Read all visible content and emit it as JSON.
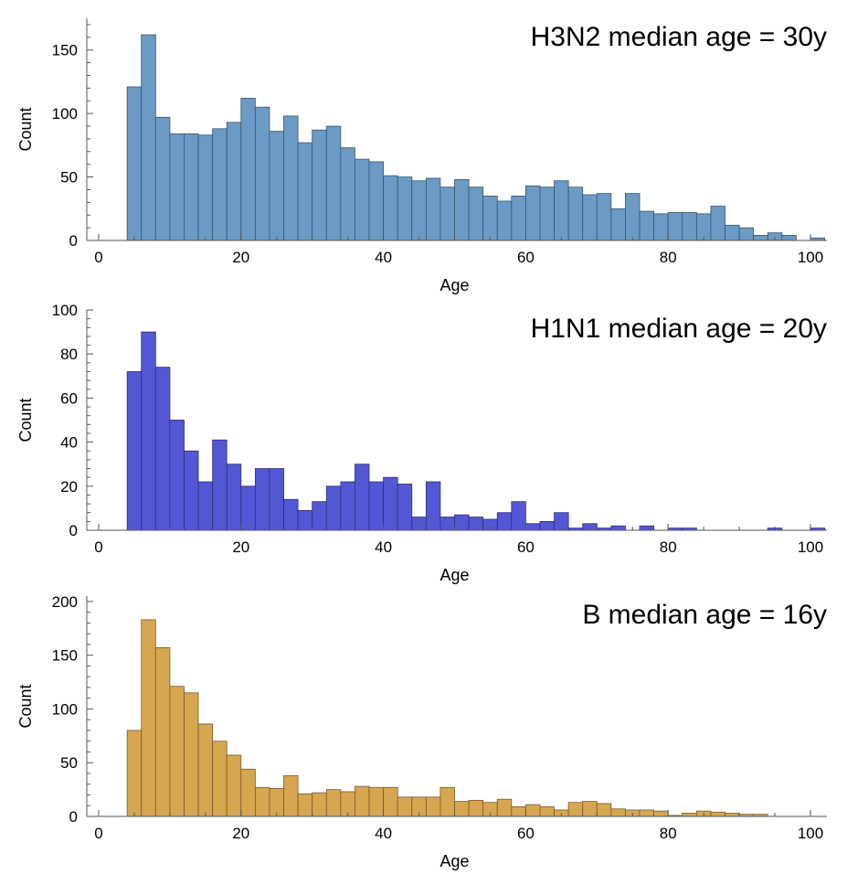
{
  "chart_data": [
    {
      "type": "bar",
      "annotation": "H3N2 median age = 30y",
      "xlabel": "Age",
      "ylabel": "Count",
      "xlim": [
        -2,
        102
      ],
      "ylim": [
        0,
        175
      ],
      "xticks": [
        0,
        20,
        40,
        60,
        80,
        100
      ],
      "yticks": [
        0,
        50,
        100,
        150
      ],
      "bin_width": 2,
      "bin_start": 4,
      "color": "#6b9ac4",
      "values": [
        121,
        162,
        97,
        84,
        84,
        83,
        88,
        93,
        112,
        105,
        86,
        98,
        77,
        87,
        90,
        73,
        64,
        62,
        51,
        50,
        47,
        49,
        42,
        48,
        42,
        35,
        31,
        35,
        43,
        42,
        47,
        42,
        36,
        37,
        25,
        37,
        23,
        21,
        22,
        22,
        21,
        27,
        12,
        10,
        4,
        6,
        4,
        0,
        2
      ]
    },
    {
      "type": "bar",
      "annotation": "H1N1 median age = 20y",
      "xlabel": "Age",
      "ylabel": "Count",
      "xlim": [
        -2,
        102
      ],
      "ylim": [
        0,
        100
      ],
      "xticks": [
        0,
        20,
        40,
        60,
        80,
        100
      ],
      "yticks": [
        0,
        20,
        40,
        60,
        80,
        100
      ],
      "bin_width": 2,
      "bin_start": 4,
      "color": "#5457d4",
      "values": [
        72,
        90,
        74,
        50,
        36,
        22,
        41,
        30,
        20,
        28,
        28,
        14,
        9,
        13,
        20,
        22,
        30,
        22,
        24,
        21,
        6,
        22,
        6,
        7,
        6,
        5,
        8,
        13,
        3,
        4,
        8,
        1,
        3,
        1,
        2,
        0,
        2,
        0,
        1,
        1,
        0,
        0,
        0,
        0,
        0,
        1,
        0,
        0,
        1
      ]
    },
    {
      "type": "bar",
      "annotation": "B median age = 16y",
      "xlabel": "Age",
      "ylabel": "Count",
      "xlim": [
        -2,
        102
      ],
      "ylim": [
        0,
        205
      ],
      "xticks": [
        0,
        20,
        40,
        60,
        80,
        100
      ],
      "yticks": [
        0,
        50,
        100,
        150,
        200
      ],
      "bin_width": 2,
      "bin_start": 4,
      "color": "#d6a650",
      "values": [
        80,
        183,
        157,
        121,
        115,
        86,
        70,
        57,
        44,
        27,
        26,
        38,
        21,
        22,
        25,
        23,
        28,
        27,
        27,
        18,
        18,
        18,
        27,
        14,
        15,
        13,
        16,
        9,
        11,
        9,
        6,
        13,
        14,
        12,
        7,
        6,
        6,
        5,
        1,
        3,
        5,
        4,
        3,
        2,
        2,
        0,
        0,
        0,
        0
      ]
    }
  ]
}
